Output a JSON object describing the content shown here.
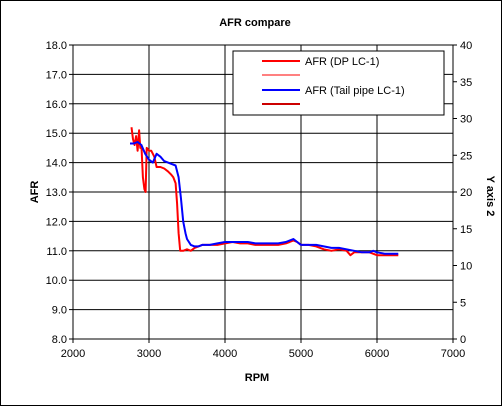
{
  "chart_data": {
    "type": "line",
    "title": "AFR compare",
    "xlabel": "RPM",
    "ylabel": "AFR",
    "y2label": "Y axis 2",
    "xlim": [
      2000,
      7000
    ],
    "ylim": [
      8.0,
      18.0
    ],
    "y2lim": [
      0,
      40
    ],
    "xticks": [
      "2000",
      "3000",
      "4000",
      "5000",
      "6000",
      "7000"
    ],
    "yticks": [
      "8.0",
      "9.0",
      "10.0",
      "11.0",
      "12.0",
      "13.0",
      "14.0",
      "15.0",
      "16.0",
      "17.0",
      "18.0"
    ],
    "y2ticks": [
      "0",
      "5",
      "10",
      "15",
      "20",
      "25",
      "30",
      "35",
      "40"
    ],
    "grid": true,
    "legend_position": "top-right",
    "colors": {
      "red": "#ff0000",
      "salmon": "#ff8080",
      "blue": "#0000ff",
      "darkred": "#cc0000"
    },
    "legend": [
      {
        "label": "AFR (DP LC-1)",
        "color": "#ff0000"
      },
      {
        "label": "",
        "color": "#ff8080"
      },
      {
        "label": "AFR (Tail pipe LC-1)",
        "color": "#0000ff"
      },
      {
        "label": "",
        "color": "#cc0000"
      }
    ],
    "series": [
      {
        "name": "AFR (DP LC-1)",
        "color": "#ff0000",
        "points": [
          [
            2770,
            15.2
          ],
          [
            2790,
            14.8
          ],
          [
            2810,
            14.6
          ],
          [
            2830,
            14.9
          ],
          [
            2850,
            14.4
          ],
          [
            2870,
            15.1
          ],
          [
            2885,
            14.5
          ],
          [
            2900,
            14.6
          ],
          [
            2920,
            13.5
          ],
          [
            2940,
            13.1
          ],
          [
            2955,
            13.0
          ],
          [
            2970,
            14.5
          ],
          [
            3000,
            14.4
          ],
          [
            3030,
            14.4
          ],
          [
            3070,
            14.2
          ],
          [
            3100,
            13.85
          ],
          [
            3150,
            13.85
          ],
          [
            3200,
            13.8
          ],
          [
            3250,
            13.7
          ],
          [
            3290,
            13.6
          ],
          [
            3320,
            13.5
          ],
          [
            3350,
            13.3
          ],
          [
            3370,
            12.6
          ],
          [
            3390,
            11.6
          ],
          [
            3410,
            11.0
          ],
          [
            3450,
            11.0
          ],
          [
            3500,
            11.05
          ],
          [
            3550,
            11.0
          ],
          [
            3600,
            11.1
          ],
          [
            3650,
            11.15
          ],
          [
            3700,
            11.2
          ],
          [
            3800,
            11.2
          ],
          [
            3900,
            11.2
          ],
          [
            4000,
            11.25
          ],
          [
            4100,
            11.3
          ],
          [
            4200,
            11.25
          ],
          [
            4300,
            11.25
          ],
          [
            4400,
            11.2
          ],
          [
            4500,
            11.2
          ],
          [
            4600,
            11.2
          ],
          [
            4700,
            11.2
          ],
          [
            4800,
            11.25
          ],
          [
            4850,
            11.3
          ],
          [
            4900,
            11.35
          ],
          [
            4950,
            11.3
          ],
          [
            5000,
            11.2
          ],
          [
            5100,
            11.2
          ],
          [
            5200,
            11.15
          ],
          [
            5300,
            11.05
          ],
          [
            5400,
            11.0
          ],
          [
            5500,
            11.05
          ],
          [
            5600,
            11.0
          ],
          [
            5650,
            10.85
          ],
          [
            5700,
            10.95
          ],
          [
            5800,
            10.95
          ],
          [
            5900,
            10.95
          ],
          [
            6000,
            10.85
          ],
          [
            6100,
            10.85
          ],
          [
            6200,
            10.85
          ],
          [
            6280,
            10.85
          ]
        ]
      },
      {
        "name": "AFR (Tail pipe LC-1)",
        "color": "#0000ff",
        "points": [
          [
            2750,
            14.65
          ],
          [
            2800,
            14.65
          ],
          [
            2850,
            14.7
          ],
          [
            2900,
            14.6
          ],
          [
            2950,
            14.3
          ],
          [
            3000,
            14.1
          ],
          [
            3050,
            14.0
          ],
          [
            3100,
            14.3
          ],
          [
            3150,
            14.2
          ],
          [
            3200,
            14.05
          ],
          [
            3300,
            13.95
          ],
          [
            3350,
            13.9
          ],
          [
            3390,
            13.5
          ],
          [
            3420,
            12.8
          ],
          [
            3450,
            12.0
          ],
          [
            3480,
            11.6
          ],
          [
            3500,
            11.4
          ],
          [
            3550,
            11.2
          ],
          [
            3600,
            11.15
          ],
          [
            3650,
            11.15
          ],
          [
            3700,
            11.2
          ],
          [
            3800,
            11.2
          ],
          [
            3900,
            11.25
          ],
          [
            4000,
            11.3
          ],
          [
            4100,
            11.3
          ],
          [
            4200,
            11.3
          ],
          [
            4300,
            11.3
          ],
          [
            4400,
            11.25
          ],
          [
            4500,
            11.25
          ],
          [
            4600,
            11.25
          ],
          [
            4700,
            11.25
          ],
          [
            4800,
            11.3
          ],
          [
            4900,
            11.4
          ],
          [
            4950,
            11.3
          ],
          [
            5000,
            11.2
          ],
          [
            5100,
            11.2
          ],
          [
            5200,
            11.2
          ],
          [
            5300,
            11.15
          ],
          [
            5400,
            11.1
          ],
          [
            5500,
            11.1
          ],
          [
            5600,
            11.05
          ],
          [
            5700,
            11.0
          ],
          [
            5800,
            10.95
          ],
          [
            5900,
            10.95
          ],
          [
            5950,
            11.0
          ],
          [
            6000,
            10.95
          ],
          [
            6100,
            10.9
          ],
          [
            6200,
            10.9
          ],
          [
            6280,
            10.9
          ]
        ]
      }
    ]
  }
}
